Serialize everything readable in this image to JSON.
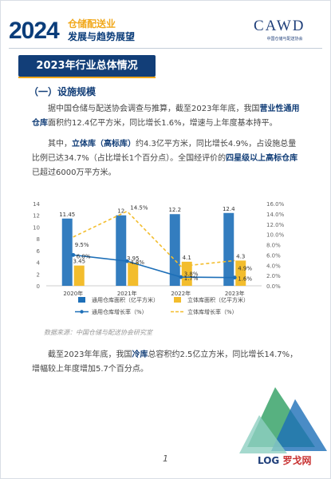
{
  "header": {
    "year": "2024",
    "title_line1": "仓储配送业",
    "title_line2": "发展与趋势展望",
    "logo_text": "CAWD",
    "logo_sub": "中国仓储与配送协会"
  },
  "section": {
    "title": "2023年行业总体情况",
    "subtitle": "（一）设施规模"
  },
  "paragraphs": {
    "p1": {
      "a": "据中国仓储与配送协会调查与推算，截至2023年年底，我国",
      "b": "营业性通用仓库",
      "c": "面积约12.4亿平方米，同比增长1.6%，增速与上年度基本持平。"
    },
    "p2": {
      "a": "其中，",
      "b": "立体库（高标库）",
      "c": "约4.3亿平方米，同比增长4.9%，占设施总量比例已达34.7%（占比增长1个百分点）。全国经评价的",
      "d": "四星级以上高标仓库",
      "e": "已超过6000万平方米。"
    },
    "p3": {
      "a": "截至2023年年底，我国",
      "b": "冷库",
      "c": "总容积约2.5亿立方米，同比增长14.7%，增幅较上年度增加5.7个百分点。"
    }
  },
  "chart_data": {
    "type": "bar",
    "categories": [
      "2020年",
      "2021年",
      "2022年",
      "2023年"
    ],
    "series": [
      {
        "name": "通用仓库面积（亿平方米）",
        "kind": "bar",
        "axis": "left",
        "color": "#1d6fb8",
        "values": [
          11.45,
          12,
          12.2,
          12.4
        ],
        "labels": [
          "11.45",
          "12",
          "12.2",
          "12.4"
        ]
      },
      {
        "name": "立体库面积（亿平方米）",
        "kind": "bar",
        "axis": "left",
        "color": "#f3bd2d",
        "values": [
          3.45,
          3.95,
          4.1,
          4.3
        ],
        "labels": [
          "3.45",
          "3.95",
          "4.1",
          "4.3"
        ]
      },
      {
        "name": "通用仓库增长率（%）",
        "kind": "line",
        "axis": "right",
        "color": "#1d6fb8",
        "values": [
          6.0,
          4.8,
          1.7,
          1.6
        ],
        "labels": [
          "6.0%",
          "4.8%",
          "1.7%",
          "1.6%"
        ]
      },
      {
        "name": "立体库增长率（%）",
        "kind": "line",
        "axis": "right",
        "dashed": true,
        "color": "#f3bd2d",
        "values": [
          9.5,
          14.5,
          3.8,
          4.9
        ],
        "labels": [
          "9.5%",
          "14.5%",
          "3.8%",
          "4.9%"
        ]
      }
    ],
    "ylim": [
      0,
      14
    ],
    "yticks": [
      "0",
      "2",
      "4",
      "6",
      "8",
      "10",
      "12",
      "14"
    ],
    "y2lim": [
      0,
      16
    ],
    "y2ticks": [
      "0.0%",
      "2.0%",
      "4.0%",
      "6.0%",
      "8.0%",
      "10.0%",
      "12.0%",
      "14.0%",
      "16.0%"
    ],
    "grid": false,
    "legend": "bottom"
  },
  "source": "数据来源：中国仓储与配送协会研究室",
  "page_number": "1",
  "watermark": {
    "a": "LOG",
    "b": "罗戈网"
  }
}
